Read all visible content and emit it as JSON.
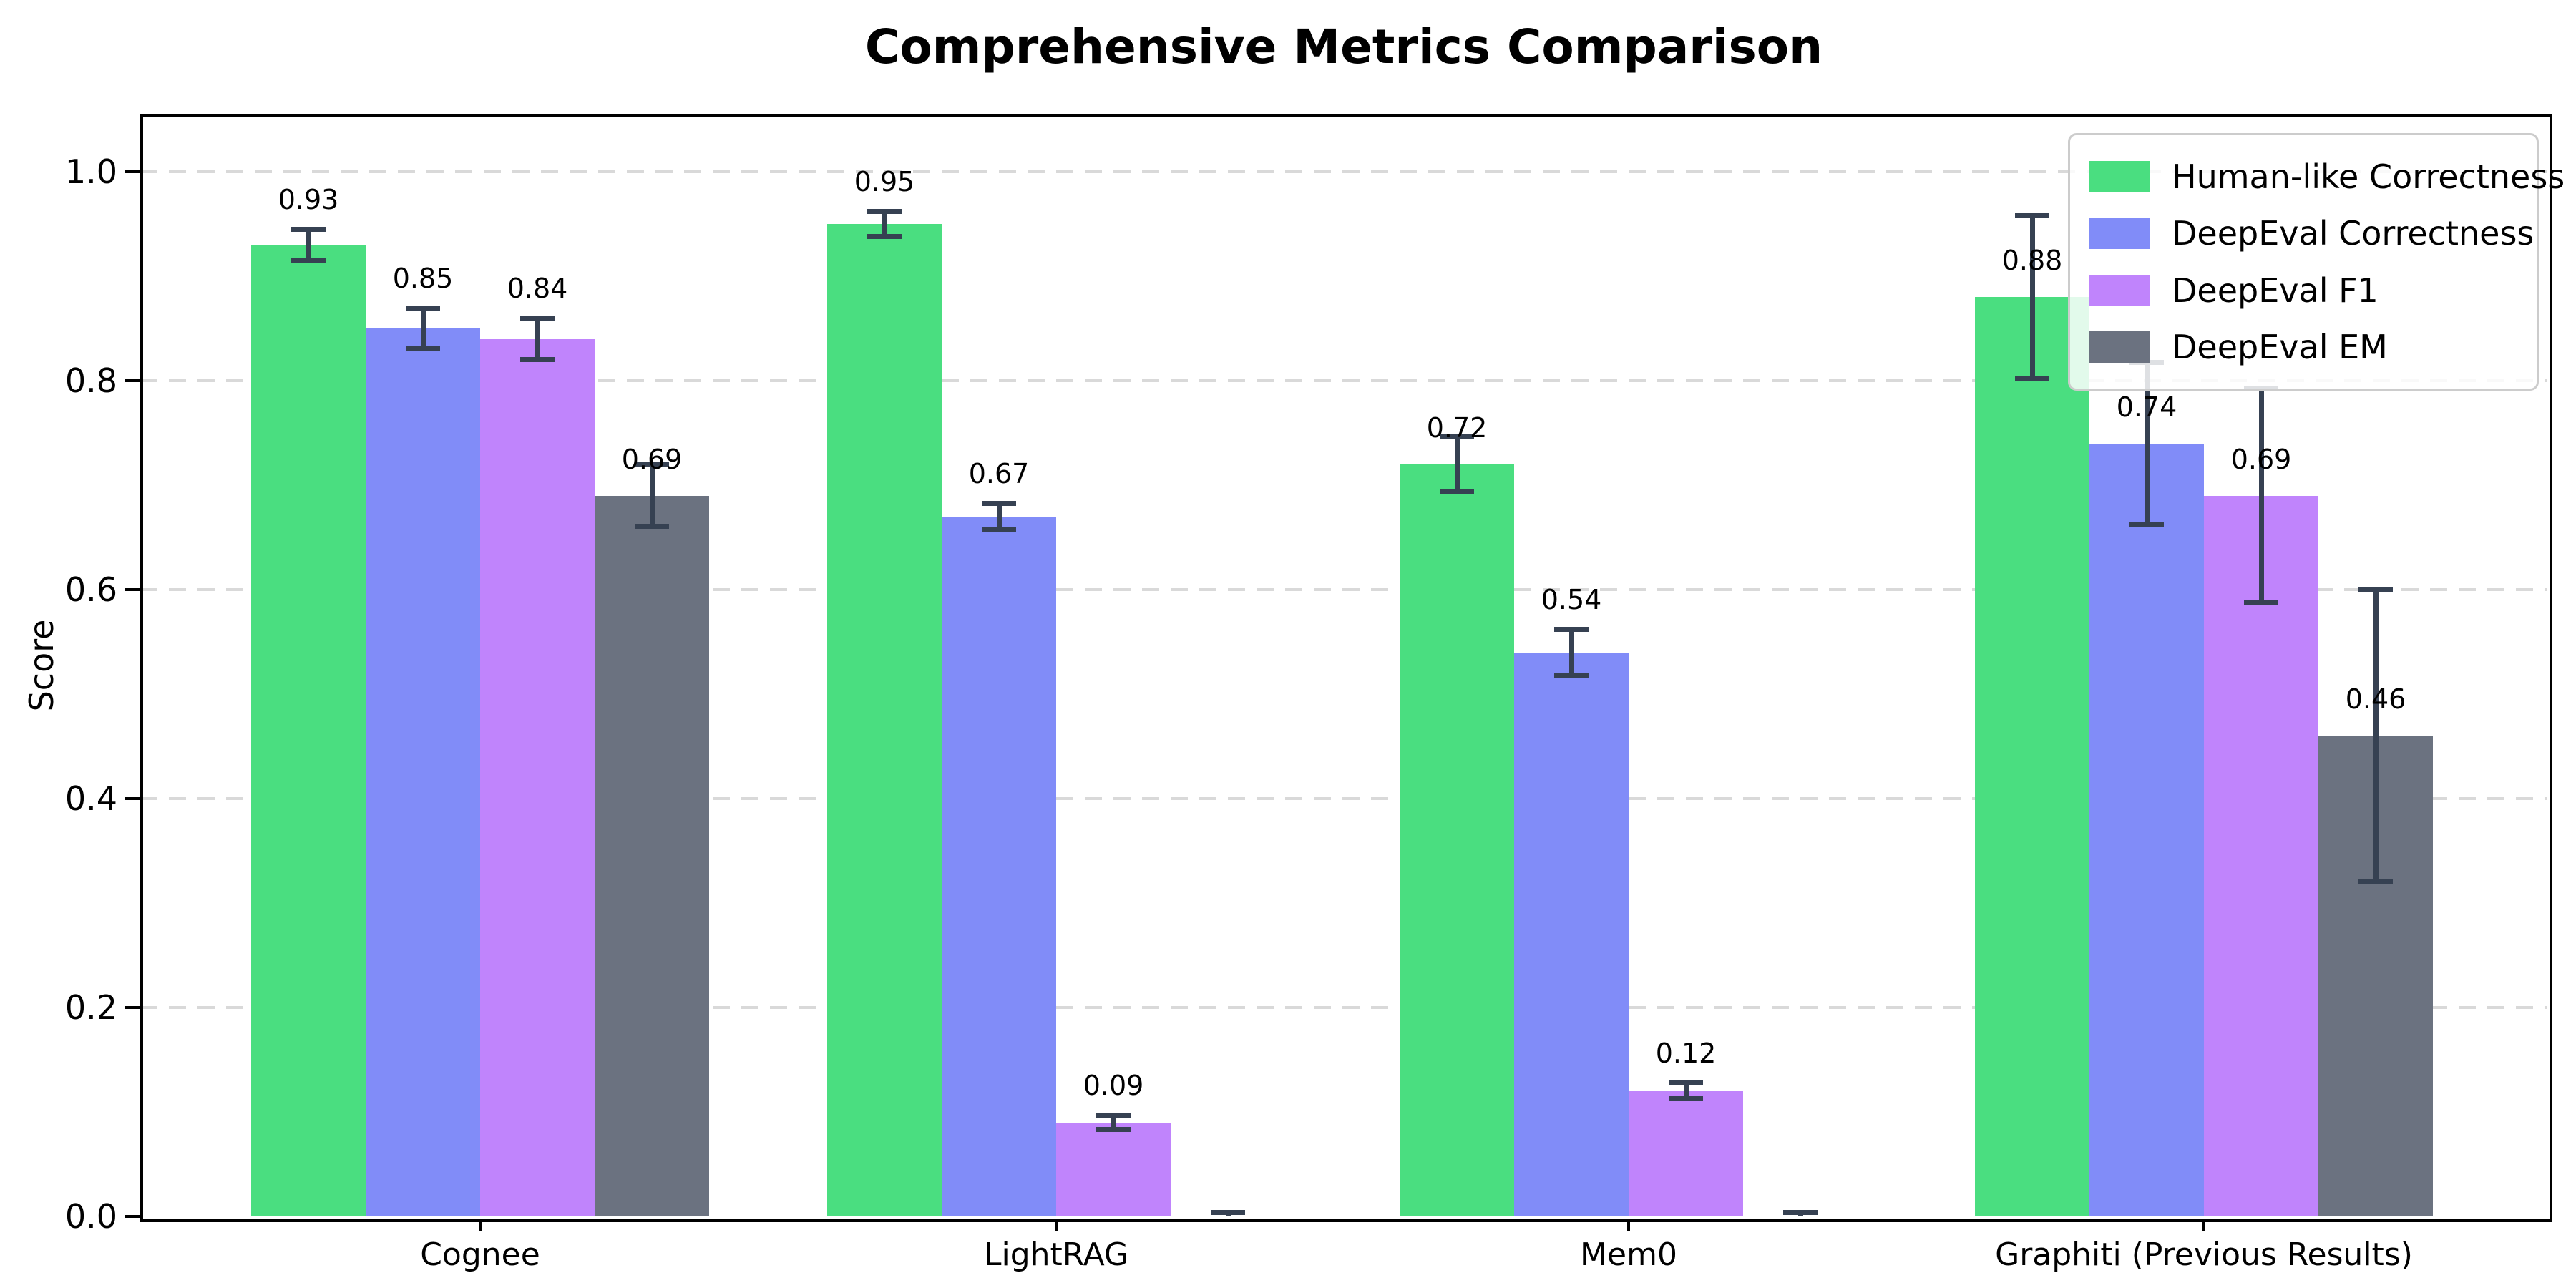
{
  "chart_data": {
    "type": "bar",
    "title": "Comprehensive Metrics Comparison",
    "ylabel": "Score",
    "xlabel": "",
    "categories": [
      "Cognee",
      "LightRAG",
      "Mem0",
      "Graphiti (Previous Results)"
    ],
    "series": [
      {
        "name": "Human-like Correctness",
        "color": "#4ade80",
        "values": [
          0.93,
          0.95,
          0.72,
          0.88
        ],
        "errors": [
          0.015,
          0.012,
          0.027,
          0.078
        ],
        "labels": [
          "0.93",
          "0.95",
          "0.72",
          "0.88"
        ]
      },
      {
        "name": "DeepEval Correctness",
        "color": "#818cf8",
        "values": [
          0.85,
          0.67,
          0.54,
          0.74
        ],
        "errors": [
          0.02,
          0.013,
          0.022,
          0.078
        ],
        "labels": [
          "0.85",
          "0.67",
          "0.54",
          "0.74"
        ]
      },
      {
        "name": "DeepEval F1",
        "color": "#c084fc",
        "values": [
          0.84,
          0.09,
          0.12,
          0.69
        ],
        "errors": [
          0.02,
          0.007,
          0.008,
          0.103
        ],
        "labels": [
          "0.84",
          "0.09",
          "0.12",
          "0.69"
        ]
      },
      {
        "name": "DeepEval EM",
        "color": "#6b7280",
        "values": [
          0.69,
          0.0,
          0.0,
          0.46
        ],
        "errors": [
          0.03,
          0.004,
          0.004,
          0.14
        ],
        "labels": [
          "0.69",
          "",
          "",
          "0.46"
        ]
      }
    ],
    "yticks": [
      "0.0",
      "0.2",
      "0.4",
      "0.6",
      "0.8",
      "1.0"
    ],
    "ylim": [
      0,
      1.05
    ],
    "grid": {
      "axis": "y",
      "style": "dashed",
      "color": "#d9d9d9"
    },
    "error_bar_color": "#364152",
    "axis_color": "#000000",
    "legend_position": "upper-right"
  }
}
